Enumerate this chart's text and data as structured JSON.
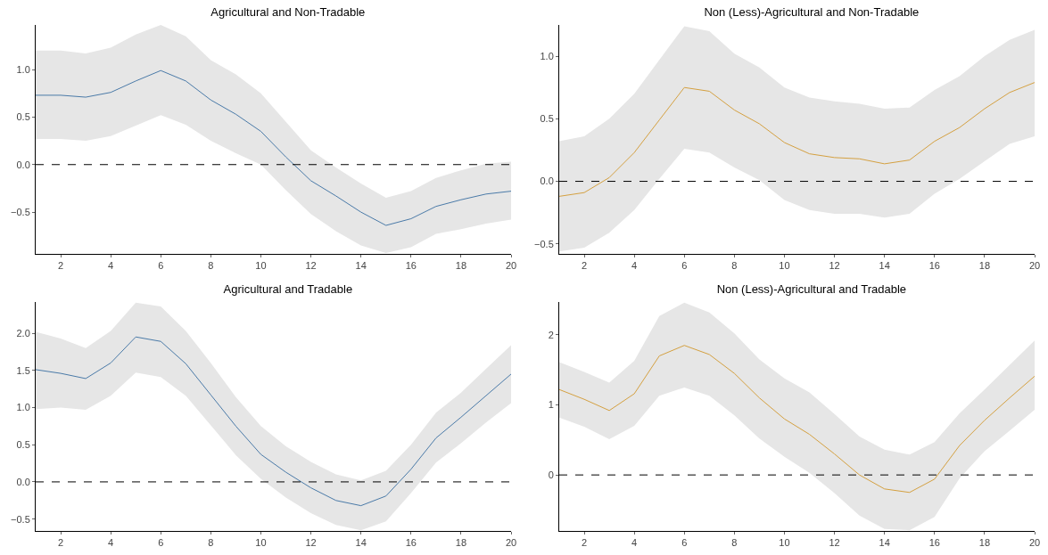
{
  "chart_data": [
    {
      "type": "line",
      "title": "Agricultural and Non-Tradable",
      "x": [
        1,
        2,
        3,
        4,
        5,
        6,
        7,
        8,
        9,
        10,
        11,
        12,
        13,
        14,
        15,
        16,
        17,
        18,
        19,
        20
      ],
      "xlim": [
        1,
        20
      ],
      "xticks": [
        2,
        4,
        6,
        8,
        10,
        12,
        14,
        16,
        18,
        20
      ],
      "ylim": [
        -0.94,
        1.47
      ],
      "yticks": [
        {
          "value": -0.5,
          "label": "−0.5"
        },
        {
          "value": 0,
          "label": "0.0"
        },
        {
          "value": 0.5,
          "label": "0.5"
        },
        {
          "value": 1,
          "label": "1.0"
        }
      ],
      "grid": false,
      "ref_lines": [
        {
          "axis": "y",
          "value": 0,
          "color": "#000000",
          "line_style": "dashed"
        }
      ],
      "series": [
        {
          "color": "#4a7aa8",
          "values": [
            0.73,
            0.73,
            0.71,
            0.76,
            0.88,
            0.99,
            0.88,
            0.68,
            0.53,
            0.35,
            0.08,
            -0.17,
            -0.33,
            -0.5,
            -0.64,
            -0.57,
            -0.44,
            -0.37,
            -0.31,
            -0.28
          ],
          "upper": [
            1.2,
            1.2,
            1.17,
            1.23,
            1.37,
            1.47,
            1.35,
            1.1,
            0.95,
            0.75,
            0.45,
            0.15,
            -0.03,
            -0.2,
            -0.35,
            -0.28,
            -0.14,
            -0.06,
            0.01,
            0.03
          ],
          "lower": [
            0.27,
            0.27,
            0.25,
            0.3,
            0.41,
            0.52,
            0.42,
            0.25,
            0.12,
            0.0,
            -0.27,
            -0.52,
            -0.7,
            -0.85,
            -0.93,
            -0.87,
            -0.73,
            -0.68,
            -0.62,
            -0.58
          ]
        }
      ]
    },
    {
      "type": "line",
      "title": "Non (Less)-Agricultural and Non-Tradable",
      "x": [
        1,
        2,
        3,
        4,
        5,
        6,
        7,
        8,
        9,
        10,
        11,
        12,
        13,
        14,
        15,
        16,
        17,
        18,
        19,
        20
      ],
      "xlim": [
        1,
        20
      ],
      "xticks": [
        2,
        4,
        6,
        8,
        10,
        12,
        14,
        16,
        18,
        20
      ],
      "ylim": [
        -0.58,
        1.25
      ],
      "yticks": [
        {
          "value": -0.5,
          "label": "−0.5"
        },
        {
          "value": 0,
          "label": "0.0"
        },
        {
          "value": 0.5,
          "label": "0.5"
        },
        {
          "value": 1,
          "label": "1.0"
        }
      ],
      "grid": false,
      "ref_lines": [
        {
          "axis": "y",
          "value": 0,
          "color": "#000000",
          "line_style": "dashed"
        }
      ],
      "series": [
        {
          "color": "#d4a040",
          "values": [
            -0.12,
            -0.09,
            0.03,
            0.23,
            0.49,
            0.75,
            0.72,
            0.57,
            0.46,
            0.31,
            0.22,
            0.19,
            0.18,
            0.14,
            0.17,
            0.32,
            0.43,
            0.58,
            0.71,
            0.79
          ],
          "upper": [
            0.32,
            0.36,
            0.5,
            0.7,
            0.97,
            1.24,
            1.2,
            1.02,
            0.91,
            0.75,
            0.67,
            0.64,
            0.62,
            0.58,
            0.59,
            0.73,
            0.84,
            1.0,
            1.13,
            1.21
          ],
          "lower": [
            -0.56,
            -0.53,
            -0.41,
            -0.23,
            0.02,
            0.26,
            0.23,
            0.11,
            0.01,
            -0.15,
            -0.23,
            -0.26,
            -0.26,
            -0.29,
            -0.26,
            -0.1,
            0.02,
            0.16,
            0.3,
            0.36
          ]
        }
      ]
    },
    {
      "type": "line",
      "title": "Agricultural and Tradable",
      "x": [
        1,
        2,
        3,
        4,
        5,
        6,
        7,
        8,
        9,
        10,
        11,
        12,
        13,
        14,
        15,
        16,
        17,
        18,
        19,
        20
      ],
      "xlim": [
        1,
        20
      ],
      "xticks": [
        2,
        4,
        6,
        8,
        10,
        12,
        14,
        16,
        18,
        20
      ],
      "ylim": [
        -0.66,
        2.42
      ],
      "yticks": [
        {
          "value": -0.5,
          "label": "−0.5"
        },
        {
          "value": 0,
          "label": "0.0"
        },
        {
          "value": 0.5,
          "label": "0.5"
        },
        {
          "value": 1,
          "label": "1.0"
        },
        {
          "value": 1.5,
          "label": "1.5"
        },
        {
          "value": 2,
          "label": "2.0"
        }
      ],
      "grid": false,
      "ref_lines": [
        {
          "axis": "y",
          "value": 0,
          "color": "#000000",
          "line_style": "dashed"
        }
      ],
      "series": [
        {
          "color": "#4a7aa8",
          "values": [
            1.51,
            1.46,
            1.39,
            1.6,
            1.95,
            1.89,
            1.59,
            1.17,
            0.75,
            0.37,
            0.13,
            -0.08,
            -0.25,
            -0.32,
            -0.19,
            0.17,
            0.59,
            0.87,
            1.16,
            1.45
          ],
          "upper": [
            2.02,
            1.93,
            1.8,
            2.03,
            2.41,
            2.36,
            2.03,
            1.6,
            1.14,
            0.75,
            0.48,
            0.27,
            0.1,
            0.02,
            0.15,
            0.5,
            0.93,
            1.2,
            1.52,
            1.84
          ],
          "lower": [
            0.98,
            1.0,
            0.97,
            1.16,
            1.47,
            1.41,
            1.16,
            0.76,
            0.36,
            0.04,
            -0.21,
            -0.42,
            -0.58,
            -0.65,
            -0.53,
            -0.15,
            0.26,
            0.52,
            0.8,
            1.06
          ]
        }
      ]
    },
    {
      "type": "line",
      "title": "Non (Less)-Agricultural and Tradable",
      "x": [
        1,
        2,
        3,
        4,
        5,
        6,
        7,
        8,
        9,
        10,
        11,
        12,
        13,
        14,
        15,
        16,
        17,
        18,
        19,
        20
      ],
      "xlim": [
        1,
        20
      ],
      "xticks": [
        2,
        4,
        6,
        8,
        10,
        12,
        14,
        16,
        18,
        20
      ],
      "ylim": [
        -0.8,
        2.47
      ],
      "yticks": [
        0,
        1,
        2
      ],
      "grid": false,
      "ref_lines": [
        {
          "axis": "y",
          "value": 0,
          "color": "#000000",
          "line_style": "dashed"
        }
      ],
      "series": [
        {
          "color": "#d4a040",
          "values": [
            1.22,
            1.08,
            0.92,
            1.16,
            1.7,
            1.85,
            1.72,
            1.45,
            1.1,
            0.8,
            0.58,
            0.3,
            0.0,
            -0.2,
            -0.25,
            -0.06,
            0.42,
            0.78,
            1.1,
            1.41
          ],
          "upper": [
            1.61,
            1.47,
            1.32,
            1.63,
            2.27,
            2.46,
            2.32,
            2.02,
            1.65,
            1.38,
            1.18,
            0.87,
            0.55,
            0.36,
            0.29,
            0.47,
            0.88,
            1.22,
            1.57,
            1.92
          ],
          "lower": [
            0.82,
            0.69,
            0.51,
            0.7,
            1.13,
            1.25,
            1.13,
            0.85,
            0.52,
            0.26,
            0.03,
            -0.26,
            -0.58,
            -0.77,
            -0.79,
            -0.6,
            -0.05,
            0.34,
            0.63,
            0.93
          ]
        }
      ]
    }
  ]
}
